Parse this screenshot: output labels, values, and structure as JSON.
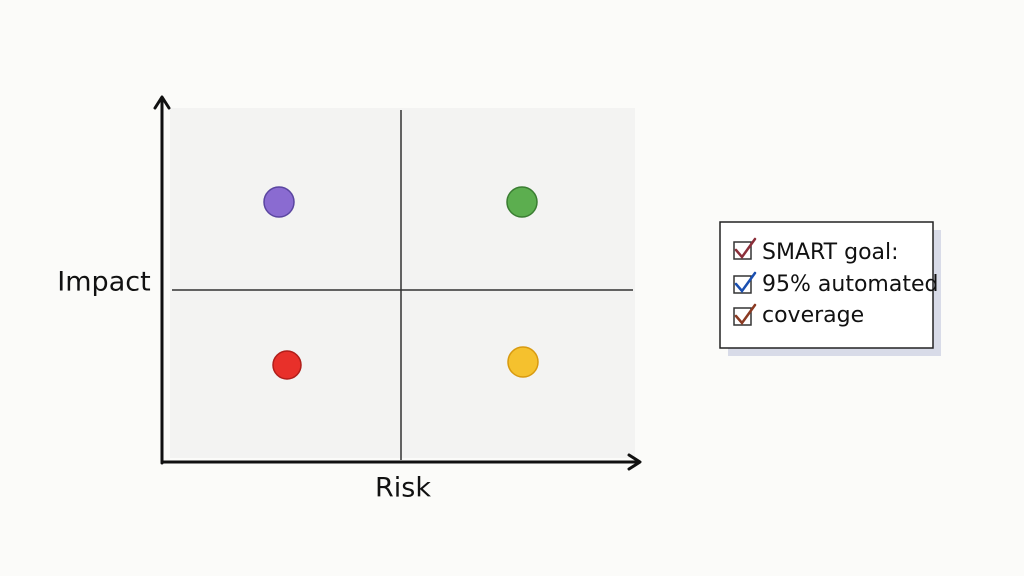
{
  "axes": {
    "y_label": "Impact",
    "x_label": "Risk"
  },
  "note": {
    "lines": [
      "SMART goal:",
      "95% automated",
      "coverage"
    ]
  }
}
